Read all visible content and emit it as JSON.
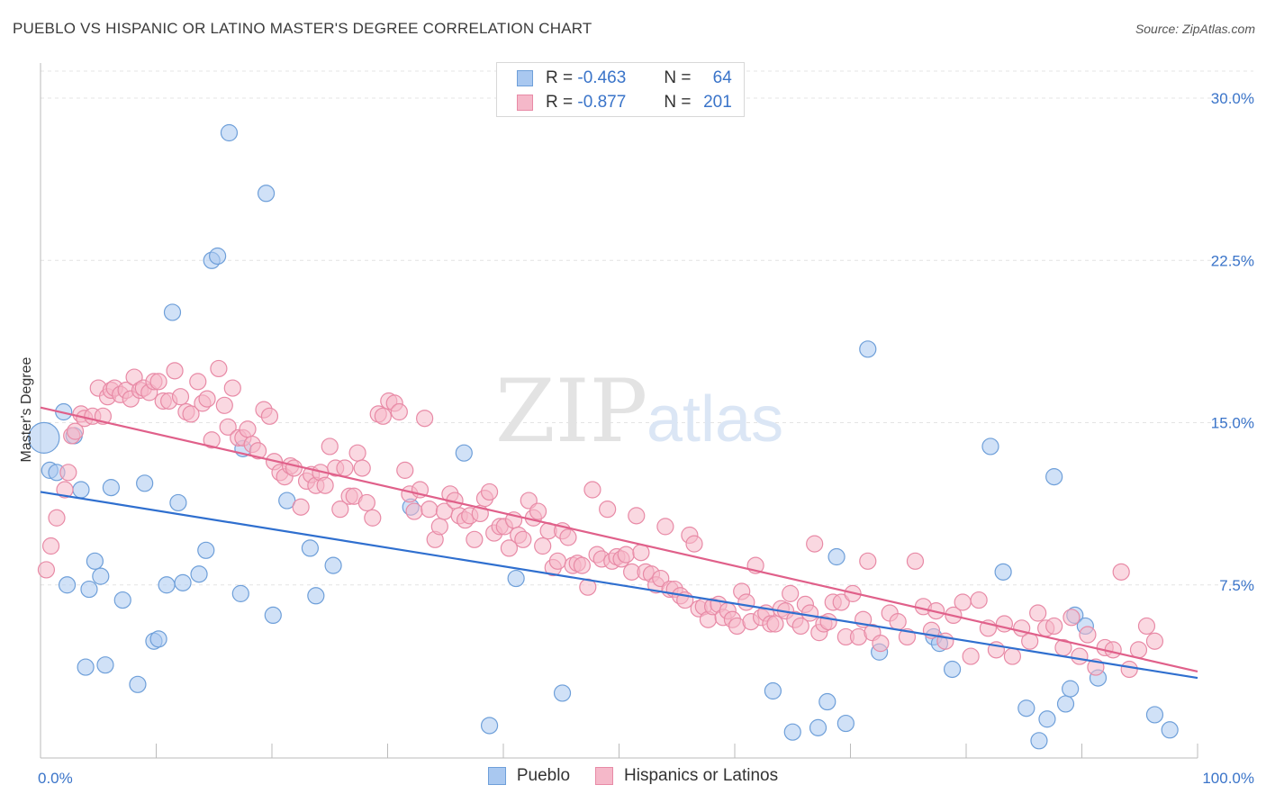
{
  "title": "PUEBLO VS HISPANIC OR LATINO MASTER'S DEGREE CORRELATION CHART",
  "source": "Source: ZipAtlas.com",
  "watermark": {
    "zip": "ZIP",
    "atlas": "atlas"
  },
  "legend": {
    "rows": [
      {
        "r_label": "R =",
        "r_value": "-0.463",
        "n_label": "N =",
        "n_value": "64",
        "color": "#a9c8f0"
      },
      {
        "r_label": "R =",
        "r_value": "-0.877",
        "n_label": "N =",
        "n_value": "201",
        "color": "#f5b8c9"
      }
    ]
  },
  "bottom_legend": [
    {
      "label": "Pueblo",
      "color": "#a9c8f0"
    },
    {
      "label": "Hispanics or Latinos",
      "color": "#f5b8c9"
    }
  ],
  "chart_data": {
    "type": "scatter",
    "title": "PUEBLO VS HISPANIC OR LATINO MASTER'S DEGREE CORRELATION CHART",
    "ylabel": "Master's Degree",
    "xlabel": "",
    "xlim": [
      0,
      100
    ],
    "ylim": [
      0,
      31.5
    ],
    "x_ticks": [
      {
        "value": 0,
        "label": "0.0%"
      },
      {
        "value": 100,
        "label": "100.0%"
      }
    ],
    "y_ticks": [
      {
        "value": 7.5,
        "label": "7.5%"
      },
      {
        "value": 15,
        "label": "15.0%"
      },
      {
        "value": 22.5,
        "label": "22.5%"
      },
      {
        "value": 30,
        "label": "30.0%"
      }
    ],
    "grid": true,
    "colors": {
      "pueblo_fill": "#a9c8f0",
      "pueblo_stroke": "#6e9fd9",
      "pueblo_line": "#2f6fcf",
      "hispanic_fill": "#f5b8c9",
      "hispanic_stroke": "#e88aa6",
      "hispanic_line": "#e0608a",
      "tick_label": "#3a74c9"
    },
    "series": [
      {
        "name": "Pueblo",
        "trend": {
          "x": [
            0,
            100
          ],
          "y": [
            11.8,
            3.2
          ]
        },
        "points": [
          [
            0.3,
            14.3
          ],
          [
            0.8,
            12.8
          ],
          [
            1.4,
            12.7
          ],
          [
            2,
            15.5
          ],
          [
            2.3,
            7.5
          ],
          [
            2.9,
            14.4
          ],
          [
            3.5,
            11.9
          ],
          [
            3.9,
            3.7
          ],
          [
            4.2,
            7.3
          ],
          [
            4.7,
            8.6
          ],
          [
            5.2,
            7.9
          ],
          [
            5.6,
            3.8
          ],
          [
            6.1,
            12
          ],
          [
            7.1,
            6.8
          ],
          [
            8.4,
            2.9
          ],
          [
            9,
            12.2
          ],
          [
            9.8,
            4.9
          ],
          [
            10.2,
            5
          ],
          [
            10.9,
            7.5
          ],
          [
            11.4,
            20.1
          ],
          [
            11.9,
            11.3
          ],
          [
            12.3,
            7.6
          ],
          [
            13.7,
            8
          ],
          [
            14.3,
            9.1
          ],
          [
            14.8,
            22.5
          ],
          [
            15.3,
            22.7
          ],
          [
            16.3,
            28.4
          ],
          [
            17.3,
            7.1
          ],
          [
            17.5,
            13.8
          ],
          [
            19.5,
            25.6
          ],
          [
            20.1,
            6.1
          ],
          [
            21.3,
            11.4
          ],
          [
            23.3,
            9.2
          ],
          [
            23.8,
            7
          ],
          [
            25.3,
            8.4
          ],
          [
            32,
            11.1
          ],
          [
            36.6,
            13.6
          ],
          [
            38.8,
            1
          ],
          [
            41.1,
            7.8
          ],
          [
            45.1,
            2.5
          ],
          [
            63.3,
            2.6
          ],
          [
            65,
            0.7
          ],
          [
            67.2,
            0.9
          ],
          [
            68,
            2.1
          ],
          [
            68.8,
            8.8
          ],
          [
            69.6,
            1.1
          ],
          [
            71.5,
            18.4
          ],
          [
            72.5,
            4.4
          ],
          [
            77.2,
            5.1
          ],
          [
            77.7,
            4.8
          ],
          [
            78.8,
            3.6
          ],
          [
            82.1,
            13.9
          ],
          [
            83.2,
            8.1
          ],
          [
            85.2,
            1.8
          ],
          [
            86.3,
            0.3
          ],
          [
            87,
            1.3
          ],
          [
            87.6,
            12.5
          ],
          [
            88.6,
            2
          ],
          [
            89,
            2.7
          ],
          [
            89.4,
            6.1
          ],
          [
            90.3,
            5.6
          ],
          [
            91.4,
            3.2
          ],
          [
            96.3,
            1.5
          ],
          [
            97.6,
            0.8
          ]
        ]
      },
      {
        "name": "Hispanics or Latinos",
        "trend": {
          "x": [
            0,
            100
          ],
          "y": [
            15.7,
            3.5
          ]
        },
        "points": [
          [
            0.5,
            8.2
          ],
          [
            0.9,
            9.3
          ],
          [
            1.4,
            10.6
          ],
          [
            2.1,
            11.9
          ],
          [
            2.4,
            12.7
          ],
          [
            2.7,
            14.4
          ],
          [
            3,
            14.6
          ],
          [
            3.5,
            15.4
          ],
          [
            3.8,
            15.2
          ],
          [
            4.5,
            15.3
          ],
          [
            5,
            16.6
          ],
          [
            5.4,
            15.3
          ],
          [
            5.8,
            16.2
          ],
          [
            6.1,
            16.5
          ],
          [
            6.4,
            16.6
          ],
          [
            6.9,
            16.3
          ],
          [
            7.4,
            16.5
          ],
          [
            7.8,
            16.1
          ],
          [
            8.1,
            17.1
          ],
          [
            8.6,
            16.5
          ],
          [
            8.9,
            16.6
          ],
          [
            9.4,
            16.4
          ],
          [
            9.8,
            16.9
          ],
          [
            10.2,
            16.9
          ],
          [
            10.6,
            16
          ],
          [
            11.1,
            16
          ],
          [
            11.6,
            17.4
          ],
          [
            12.1,
            16.2
          ],
          [
            12.6,
            15.5
          ],
          [
            13,
            15.4
          ],
          [
            13.6,
            16.9
          ],
          [
            14,
            15.9
          ],
          [
            14.4,
            16.1
          ],
          [
            14.8,
            14.2
          ],
          [
            15.4,
            17.5
          ],
          [
            15.9,
            15.8
          ],
          [
            16.2,
            14.8
          ],
          [
            16.6,
            16.6
          ],
          [
            17.1,
            14.3
          ],
          [
            17.5,
            14.3
          ],
          [
            17.9,
            14.7
          ],
          [
            18.3,
            14
          ],
          [
            18.8,
            13.7
          ],
          [
            19.3,
            15.6
          ],
          [
            19.8,
            15.3
          ],
          [
            20.2,
            13.2
          ],
          [
            20.7,
            12.7
          ],
          [
            21.1,
            12.5
          ],
          [
            21.6,
            13
          ],
          [
            21.9,
            12.9
          ],
          [
            22.5,
            11.1
          ],
          [
            23,
            12.3
          ],
          [
            23.4,
            12.6
          ],
          [
            23.8,
            12.1
          ],
          [
            24.2,
            12.7
          ],
          [
            24.6,
            12.1
          ],
          [
            25,
            13.9
          ],
          [
            25.5,
            12.9
          ],
          [
            25.9,
            11
          ],
          [
            26.3,
            12.9
          ],
          [
            26.7,
            11.6
          ],
          [
            27.1,
            11.6
          ],
          [
            27.4,
            13.6
          ],
          [
            27.8,
            12.9
          ],
          [
            28.2,
            11.3
          ],
          [
            28.7,
            10.6
          ],
          [
            29.2,
            15.4
          ],
          [
            29.6,
            15.3
          ],
          [
            30.1,
            16
          ],
          [
            30.6,
            15.9
          ],
          [
            31,
            15.5
          ],
          [
            31.5,
            12.8
          ],
          [
            31.9,
            11.7
          ],
          [
            32.3,
            10.9
          ],
          [
            32.8,
            11.9
          ],
          [
            33.2,
            15.2
          ],
          [
            33.6,
            11
          ],
          [
            34.1,
            9.6
          ],
          [
            34.5,
            10.2
          ],
          [
            34.9,
            10.9
          ],
          [
            35.4,
            11.7
          ],
          [
            35.8,
            11.4
          ],
          [
            36.2,
            10.7
          ],
          [
            36.7,
            10.5
          ],
          [
            37.1,
            10.7
          ],
          [
            37.5,
            9.6
          ],
          [
            38,
            10.8
          ],
          [
            38.4,
            11.5
          ],
          [
            38.8,
            11.8
          ],
          [
            39.2,
            9.9
          ],
          [
            39.7,
            10.2
          ],
          [
            40.1,
            10.2
          ],
          [
            40.5,
            9.2
          ],
          [
            40.9,
            10.5
          ],
          [
            41.3,
            9.8
          ],
          [
            41.7,
            9.6
          ],
          [
            42.2,
            11.4
          ],
          [
            42.6,
            10.6
          ],
          [
            43,
            10.9
          ],
          [
            43.4,
            9.3
          ],
          [
            43.9,
            10
          ],
          [
            44.3,
            8.3
          ],
          [
            44.7,
            8.6
          ],
          [
            45.1,
            10
          ],
          [
            45.6,
            9.7
          ],
          [
            46,
            8.4
          ],
          [
            46.4,
            8.5
          ],
          [
            46.8,
            8.4
          ],
          [
            47.3,
            7.4
          ],
          [
            47.7,
            11.9
          ],
          [
            48.1,
            8.9
          ],
          [
            48.5,
            8.7
          ],
          [
            49,
            11
          ],
          [
            49.4,
            8.6
          ],
          [
            49.8,
            8.8
          ],
          [
            50.2,
            8.7
          ],
          [
            50.6,
            8.9
          ],
          [
            51.1,
            8.1
          ],
          [
            51.5,
            10.7
          ],
          [
            51.9,
            9
          ],
          [
            52.3,
            8.1
          ],
          [
            52.8,
            8
          ],
          [
            53.2,
            7.5
          ],
          [
            53.6,
            7.8
          ],
          [
            54,
            10.2
          ],
          [
            54.4,
            7.3
          ],
          [
            54.8,
            7.3
          ],
          [
            55.3,
            7
          ],
          [
            55.7,
            6.8
          ],
          [
            56.1,
            9.8
          ],
          [
            56.5,
            9.4
          ],
          [
            56.9,
            6.4
          ],
          [
            57.3,
            6.5
          ],
          [
            57.7,
            5.9
          ],
          [
            58.1,
            6.5
          ],
          [
            58.6,
            6.6
          ],
          [
            59,
            6
          ],
          [
            59.4,
            6.3
          ],
          [
            59.8,
            5.9
          ],
          [
            60.2,
            5.6
          ],
          [
            60.6,
            7.2
          ],
          [
            61,
            6.7
          ],
          [
            61.4,
            5.8
          ],
          [
            61.8,
            8.4
          ],
          [
            62.3,
            6
          ],
          [
            62.7,
            6.2
          ],
          [
            63.1,
            5.7
          ],
          [
            63.5,
            5.7
          ],
          [
            64,
            6.4
          ],
          [
            64.4,
            6.3
          ],
          [
            64.8,
            7.1
          ],
          [
            65.2,
            5.9
          ],
          [
            65.7,
            5.6
          ],
          [
            66.1,
            6.6
          ],
          [
            66.5,
            6.2
          ],
          [
            66.9,
            9.4
          ],
          [
            67.3,
            5.3
          ],
          [
            67.7,
            5.7
          ],
          [
            68.1,
            5.8
          ],
          [
            68.5,
            6.7
          ],
          [
            69.2,
            6.7
          ],
          [
            69.6,
            5.1
          ],
          [
            70.2,
            7.1
          ],
          [
            70.7,
            5.1
          ],
          [
            71.1,
            5.9
          ],
          [
            71.5,
            8.6
          ],
          [
            71.9,
            5.3
          ],
          [
            72.6,
            4.8
          ],
          [
            73.4,
            6.2
          ],
          [
            74.1,
            5.8
          ],
          [
            74.9,
            5.1
          ],
          [
            75.6,
            8.6
          ],
          [
            76.3,
            6.5
          ],
          [
            77,
            5.4
          ],
          [
            77.4,
            6.3
          ],
          [
            78.2,
            4.9
          ],
          [
            78.9,
            6.1
          ],
          [
            79.7,
            6.7
          ],
          [
            80.4,
            4.2
          ],
          [
            81.1,
            6.8
          ],
          [
            81.9,
            5.5
          ],
          [
            82.6,
            4.5
          ],
          [
            83.3,
            5.7
          ],
          [
            84,
            4.2
          ],
          [
            84.8,
            5.5
          ],
          [
            85.5,
            4.9
          ],
          [
            86.2,
            6.2
          ],
          [
            86.9,
            5.5
          ],
          [
            87.6,
            5.6
          ],
          [
            88.4,
            4.6
          ],
          [
            89.1,
            6
          ],
          [
            89.8,
            4.2
          ],
          [
            90.5,
            5.2
          ],
          [
            91.2,
            3.7
          ],
          [
            92,
            4.6
          ],
          [
            92.7,
            4.5
          ],
          [
            93.4,
            8.1
          ],
          [
            94.1,
            3.6
          ],
          [
            94.9,
            4.5
          ],
          [
            95.6,
            5.6
          ],
          [
            96.3,
            4.9
          ]
        ]
      }
    ]
  }
}
